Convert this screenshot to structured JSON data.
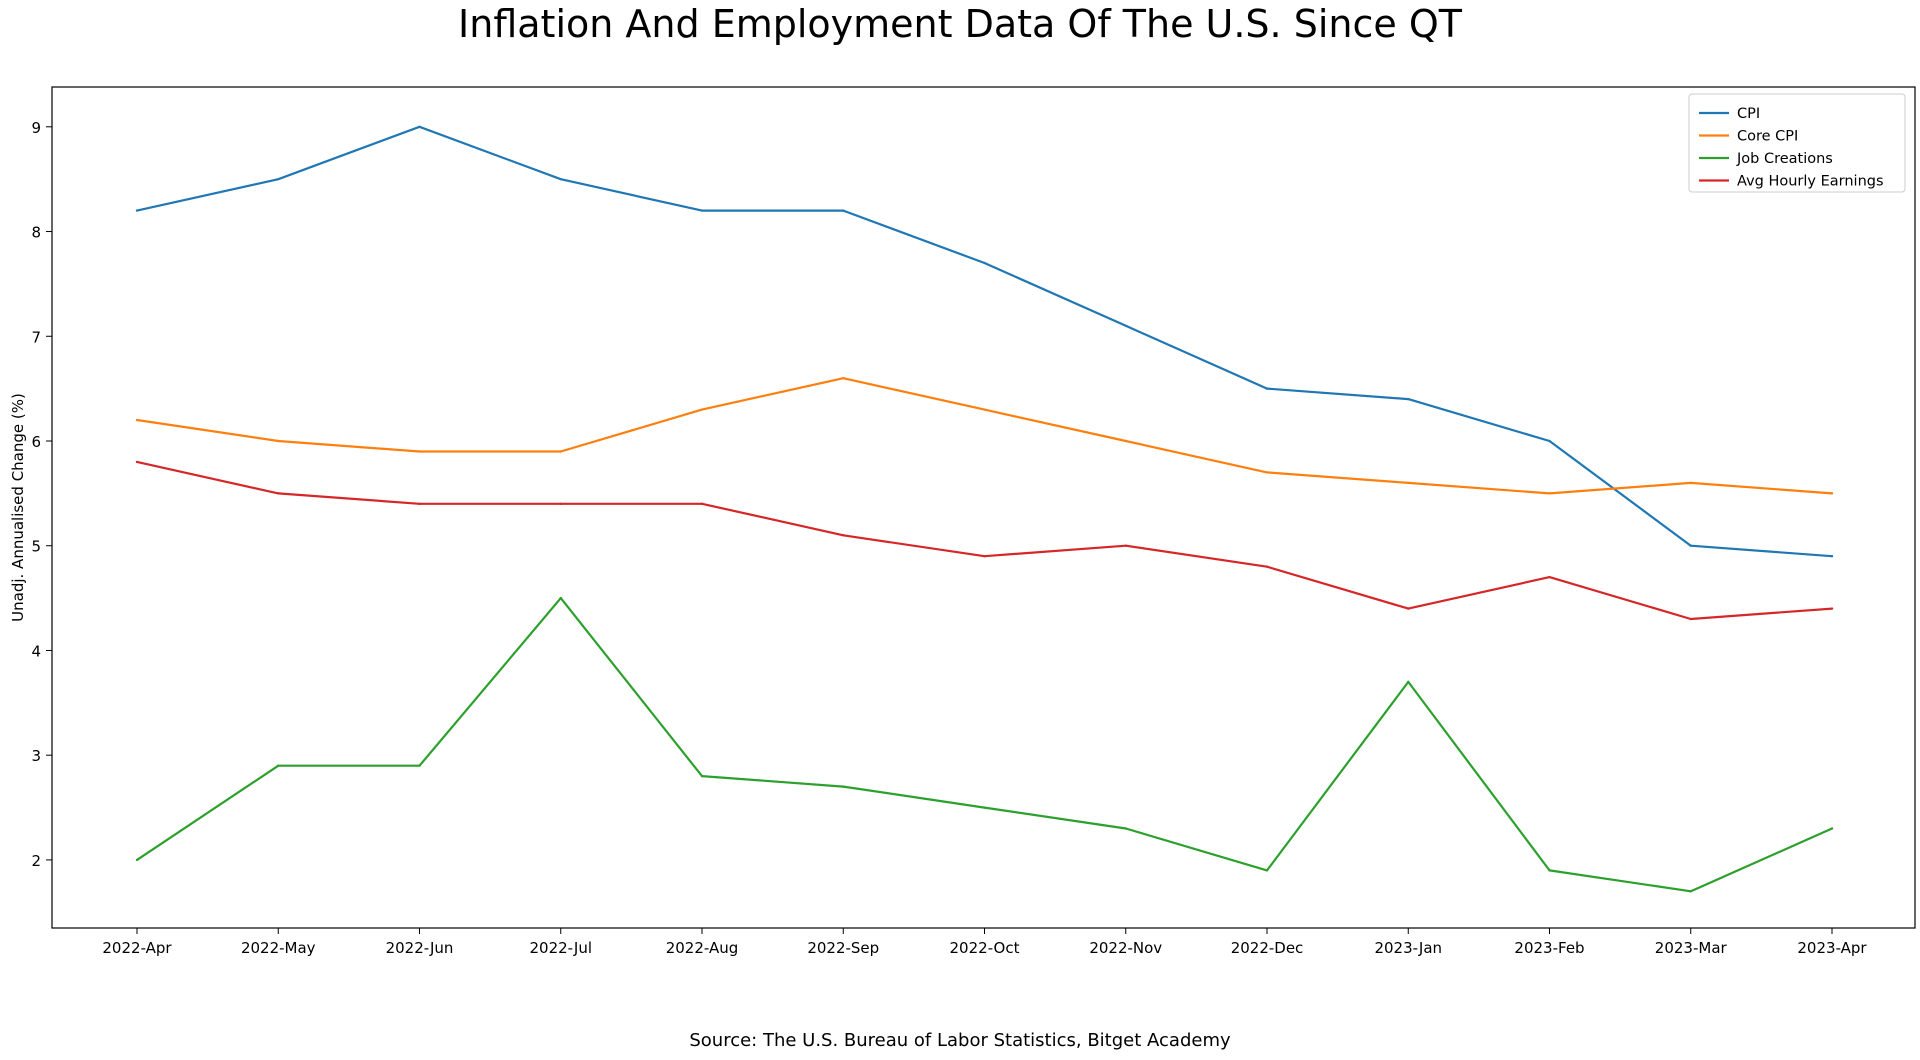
{
  "chart_data": {
    "type": "line",
    "title": "Inflation And Employment Data Of The U.S. Since QT",
    "xlabel": "",
    "ylabel": "Unadj. Annualised Change (%)",
    "ylim": [
      1.35,
      9.38
    ],
    "yticks": [
      2,
      3,
      4,
      5,
      6,
      7,
      8,
      9
    ],
    "grid": false,
    "legend_position": "top-right",
    "categories": [
      "2022-Apr",
      "2022-May",
      "2022-Jun",
      "2022-Jul",
      "2022-Aug",
      "2022-Sep",
      "2022-Oct",
      "2022-Nov",
      "2022-Dec",
      "2023-Jan",
      "2023-Feb",
      "2023-Mar",
      "2023-Apr"
    ],
    "series": [
      {
        "name": "CPI",
        "color": "#1f77b4",
        "values": [
          8.2,
          8.5,
          9.0,
          8.5,
          8.2,
          8.2,
          7.7,
          7.1,
          6.5,
          6.4,
          6.0,
          5.0,
          4.9
        ]
      },
      {
        "name": "Core CPI",
        "color": "#ff7f0e",
        "values": [
          6.2,
          6.0,
          5.9,
          5.9,
          6.3,
          6.6,
          6.3,
          6.0,
          5.7,
          5.6,
          5.5,
          5.6,
          5.5
        ]
      },
      {
        "name": "Job Creations",
        "color": "#2ca02c",
        "values": [
          2.0,
          2.9,
          2.9,
          4.5,
          2.8,
          2.7,
          2.5,
          2.3,
          1.9,
          3.7,
          1.9,
          1.7,
          2.3
        ]
      },
      {
        "name": "Avg Hourly Earnings",
        "color": "#d62728",
        "values": [
          5.8,
          5.5,
          5.4,
          5.4,
          5.4,
          5.1,
          4.9,
          5.0,
          4.8,
          4.4,
          4.7,
          4.3,
          4.4
        ]
      }
    ],
    "source": "Source: The U.S. Bureau of Labor Statistics, Bitget Academy"
  }
}
